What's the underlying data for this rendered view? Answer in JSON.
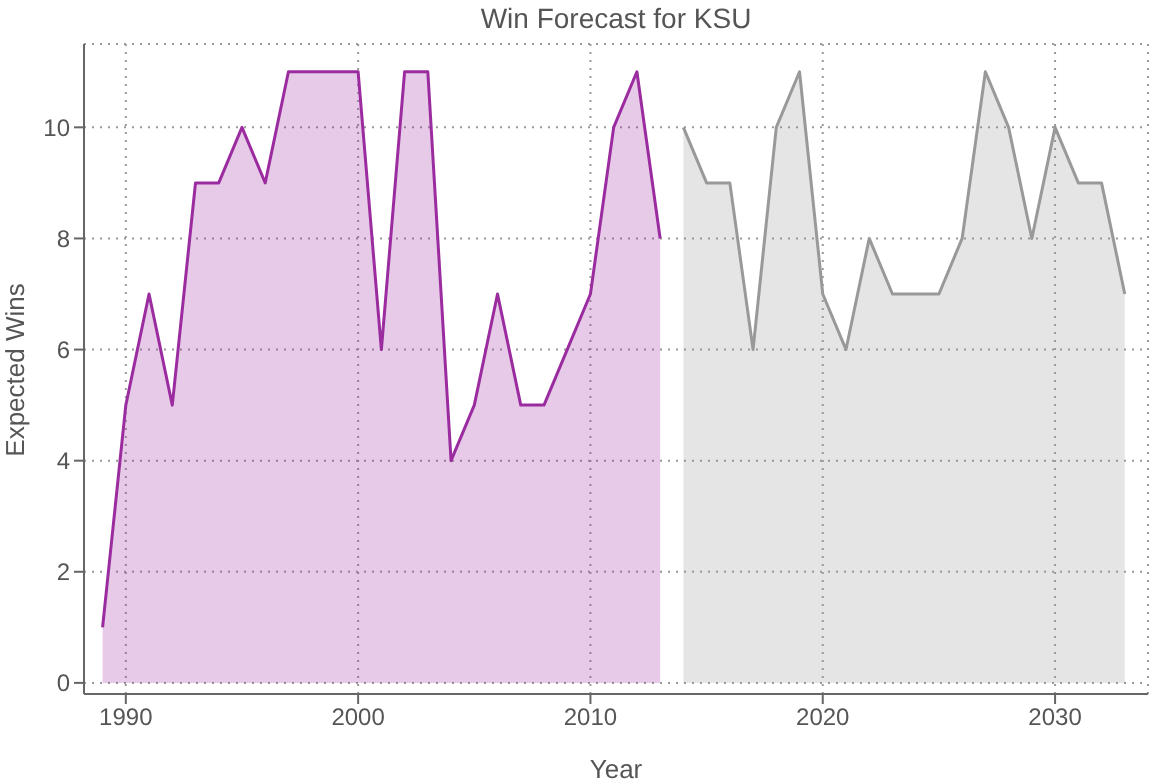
{
  "chart_data": {
    "type": "area",
    "title": "Win Forecast for KSU",
    "xlabel": "Year",
    "ylabel": "Expected Wins",
    "xlim": [
      1988.2,
      2034
    ],
    "xticks": [
      1990,
      2000,
      2010,
      2020,
      2030
    ],
    "ylim": [
      -0.2,
      11.5
    ],
    "yticks": [
      0,
      2,
      4,
      6,
      8,
      10
    ],
    "grid": true,
    "series": [
      {
        "color": "#9b2ca0",
        "x": [
          1989,
          1990,
          1991,
          1992,
          1993,
          1994,
          1995,
          1996,
          1997,
          1998,
          1999,
          2000,
          2001,
          2002,
          2003,
          2004,
          2005,
          2006,
          2007,
          2008,
          2009,
          2010,
          2011,
          2012,
          2013
        ],
        "values": [
          1,
          5,
          7,
          5,
          9,
          9,
          10,
          9,
          11,
          11,
          11,
          11,
          6,
          11,
          11,
          4,
          5,
          7,
          5,
          5,
          6,
          7,
          10,
          11,
          8
        ]
      },
      {
        "color": "#999999",
        "x": [
          2014,
          2015,
          2016,
          2017,
          2018,
          2019,
          2020,
          2021,
          2022,
          2023,
          2024,
          2025,
          2026,
          2027,
          2028,
          2029,
          2030,
          2031,
          2032,
          2033
        ],
        "values": [
          10,
          9,
          9,
          6,
          10,
          11,
          7,
          6,
          8,
          7,
          7,
          7,
          8,
          11,
          10,
          8,
          10,
          9,
          9,
          7
        ]
      }
    ]
  }
}
